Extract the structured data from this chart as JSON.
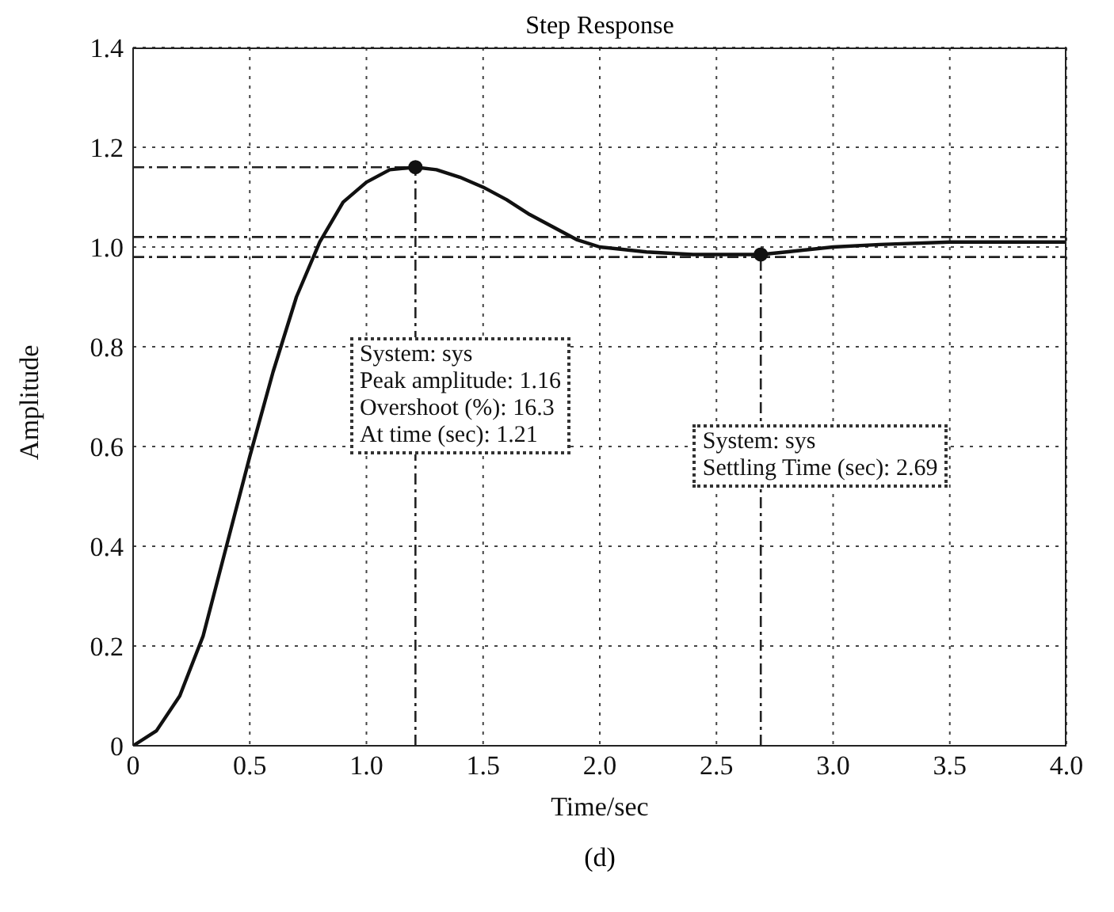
{
  "chart_data": {
    "type": "line",
    "title": "Step Response",
    "xlabel": "Time/sec",
    "ylabel": "Amplitude",
    "xlim": [
      0,
      4
    ],
    "ylim": [
      0,
      1.4
    ],
    "xticks": [
      0,
      0.5,
      {
        "value": 1,
        "label": "1.0"
      },
      1.5,
      {
        "value": 2,
        "label": "2.0"
      },
      2.5,
      {
        "value": 3,
        "label": "3.0"
      },
      3.5,
      {
        "value": 4,
        "label": "4.0"
      }
    ],
    "yticks": [
      0,
      0.2,
      0.4,
      0.6,
      0.8,
      {
        "value": 1,
        "label": "1.0"
      },
      1.2,
      1.4
    ],
    "grid": true,
    "legend": false,
    "marker": "none",
    "line_style": "solid",
    "series": [
      {
        "color": "#111111",
        "x": [
          0,
          0.1,
          0.2,
          0.3,
          0.4,
          0.5,
          0.6,
          0.7,
          0.8,
          0.9,
          1.0,
          1.1,
          1.21,
          1.3,
          1.4,
          1.5,
          1.6,
          1.7,
          1.8,
          1.9,
          2.0,
          2.2,
          2.4,
          2.6,
          2.69,
          2.8,
          3.0,
          3.2,
          3.5,
          4.0
        ],
        "values": [
          0,
          0.03,
          0.1,
          0.22,
          0.4,
          0.58,
          0.75,
          0.9,
          1.01,
          1.09,
          1.13,
          1.155,
          1.16,
          1.155,
          1.14,
          1.12,
          1.095,
          1.065,
          1.04,
          1.015,
          1.0,
          0.99,
          0.985,
          0.985,
          0.985,
          0.99,
          1.0,
          1.005,
          1.01,
          1.01
        ]
      },
      {
        "type": "scatter",
        "color": "#111111",
        "marker": "circle",
        "x": [
          1.21,
          2.69
        ],
        "values": [
          1.16,
          0.985
        ]
      }
    ],
    "ref_lines": [
      {
        "axis": "y",
        "value": 1.02,
        "line_style": "dashed",
        "color": "#222222"
      },
      {
        "axis": "y",
        "value": 0.98,
        "line_style": "dashed",
        "color": "#222222"
      },
      {
        "axis": "y",
        "value": 1.16,
        "line_style": "dashed",
        "color": "#222222"
      },
      {
        "axis": "x",
        "value": 1.21,
        "line_style": "dashed",
        "color": "#222222"
      },
      {
        "axis": "x",
        "value": 2.69,
        "line_style": "dashed",
        "color": "#222222"
      }
    ],
    "annotations": [
      "System: sys\nPeak amplitude: 1.16\nOvershoot (%): 16.3\nAt time (sec): 1.21",
      "System: sys\nSettling Time (sec): 2.69",
      "(d)"
    ]
  }
}
